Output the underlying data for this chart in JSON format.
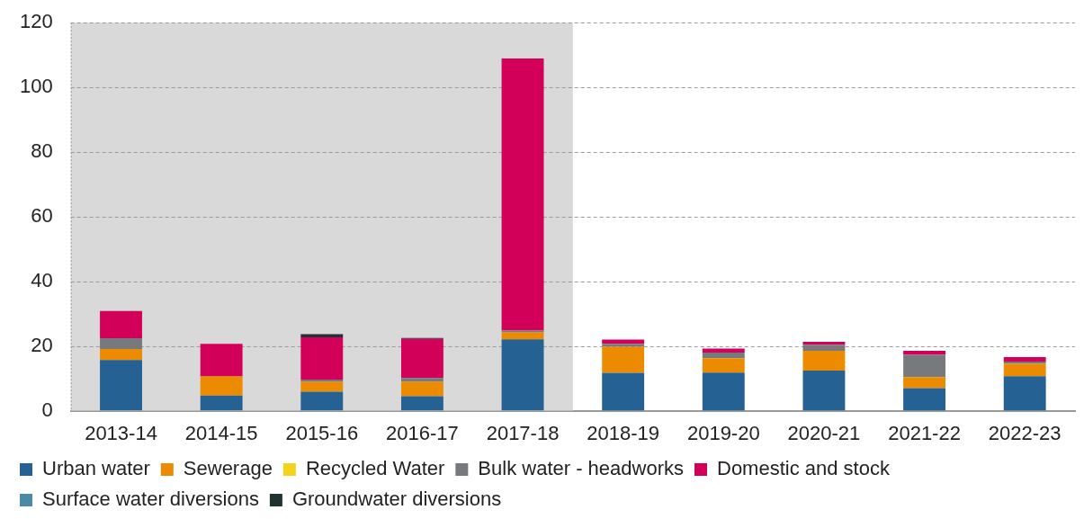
{
  "chart_data": {
    "type": "bar",
    "stacked": true,
    "categories": [
      "2013-14",
      "2014-15",
      "2015-16",
      "2016-17",
      "2017-18",
      "2018-19",
      "2019-20",
      "2020-21",
      "2021-22",
      "2022-23"
    ],
    "series": [
      {
        "name": "Urban water",
        "color": "#256293",
        "values": [
          15.7,
          4.7,
          5.9,
          4.5,
          22.1,
          11.7,
          11.8,
          12.4,
          7.0,
          10.7
        ]
      },
      {
        "name": "Sewerage",
        "color": "#ec8b00",
        "values": [
          3.4,
          5.9,
          3.0,
          4.4,
          2.1,
          8.1,
          4.4,
          6.1,
          3.4,
          3.8
        ]
      },
      {
        "name": "Recycled Water",
        "color": "#f5d31b",
        "values": [
          0,
          0,
          0,
          0,
          0,
          0,
          0,
          0,
          0,
          0
        ]
      },
      {
        "name": "Bulk water - headworks",
        "color": "#767a7c",
        "values": [
          3.3,
          0,
          0.7,
          1.2,
          0.6,
          0.9,
          1.8,
          1.9,
          6.9,
          0.7
        ]
      },
      {
        "name": "Domestic and stock",
        "color": "#d20058",
        "values": [
          8.4,
          10.1,
          13.1,
          12.1,
          84.1,
          1.3,
          1.2,
          0.9,
          1.2,
          1.4
        ]
      },
      {
        "name": "Surface water diversions",
        "color": "#4a8aa6",
        "values": [
          0,
          0,
          0,
          0,
          0,
          0,
          0,
          0,
          0,
          0
        ]
      },
      {
        "name": "Groundwater diversions",
        "color": "#1f3330",
        "values": [
          0,
          0,
          1.0,
          0.3,
          0,
          0,
          0,
          0,
          0,
          0
        ]
      }
    ],
    "ylim": [
      0,
      120
    ],
    "yticks": [
      0,
      20,
      40,
      60,
      80,
      100,
      120
    ],
    "grid": "y",
    "legend": "bottom",
    "bands": [
      {
        "axis": "x",
        "from": "2013-14",
        "to": "2017-18",
        "color": "#d9d9d9"
      }
    ]
  }
}
